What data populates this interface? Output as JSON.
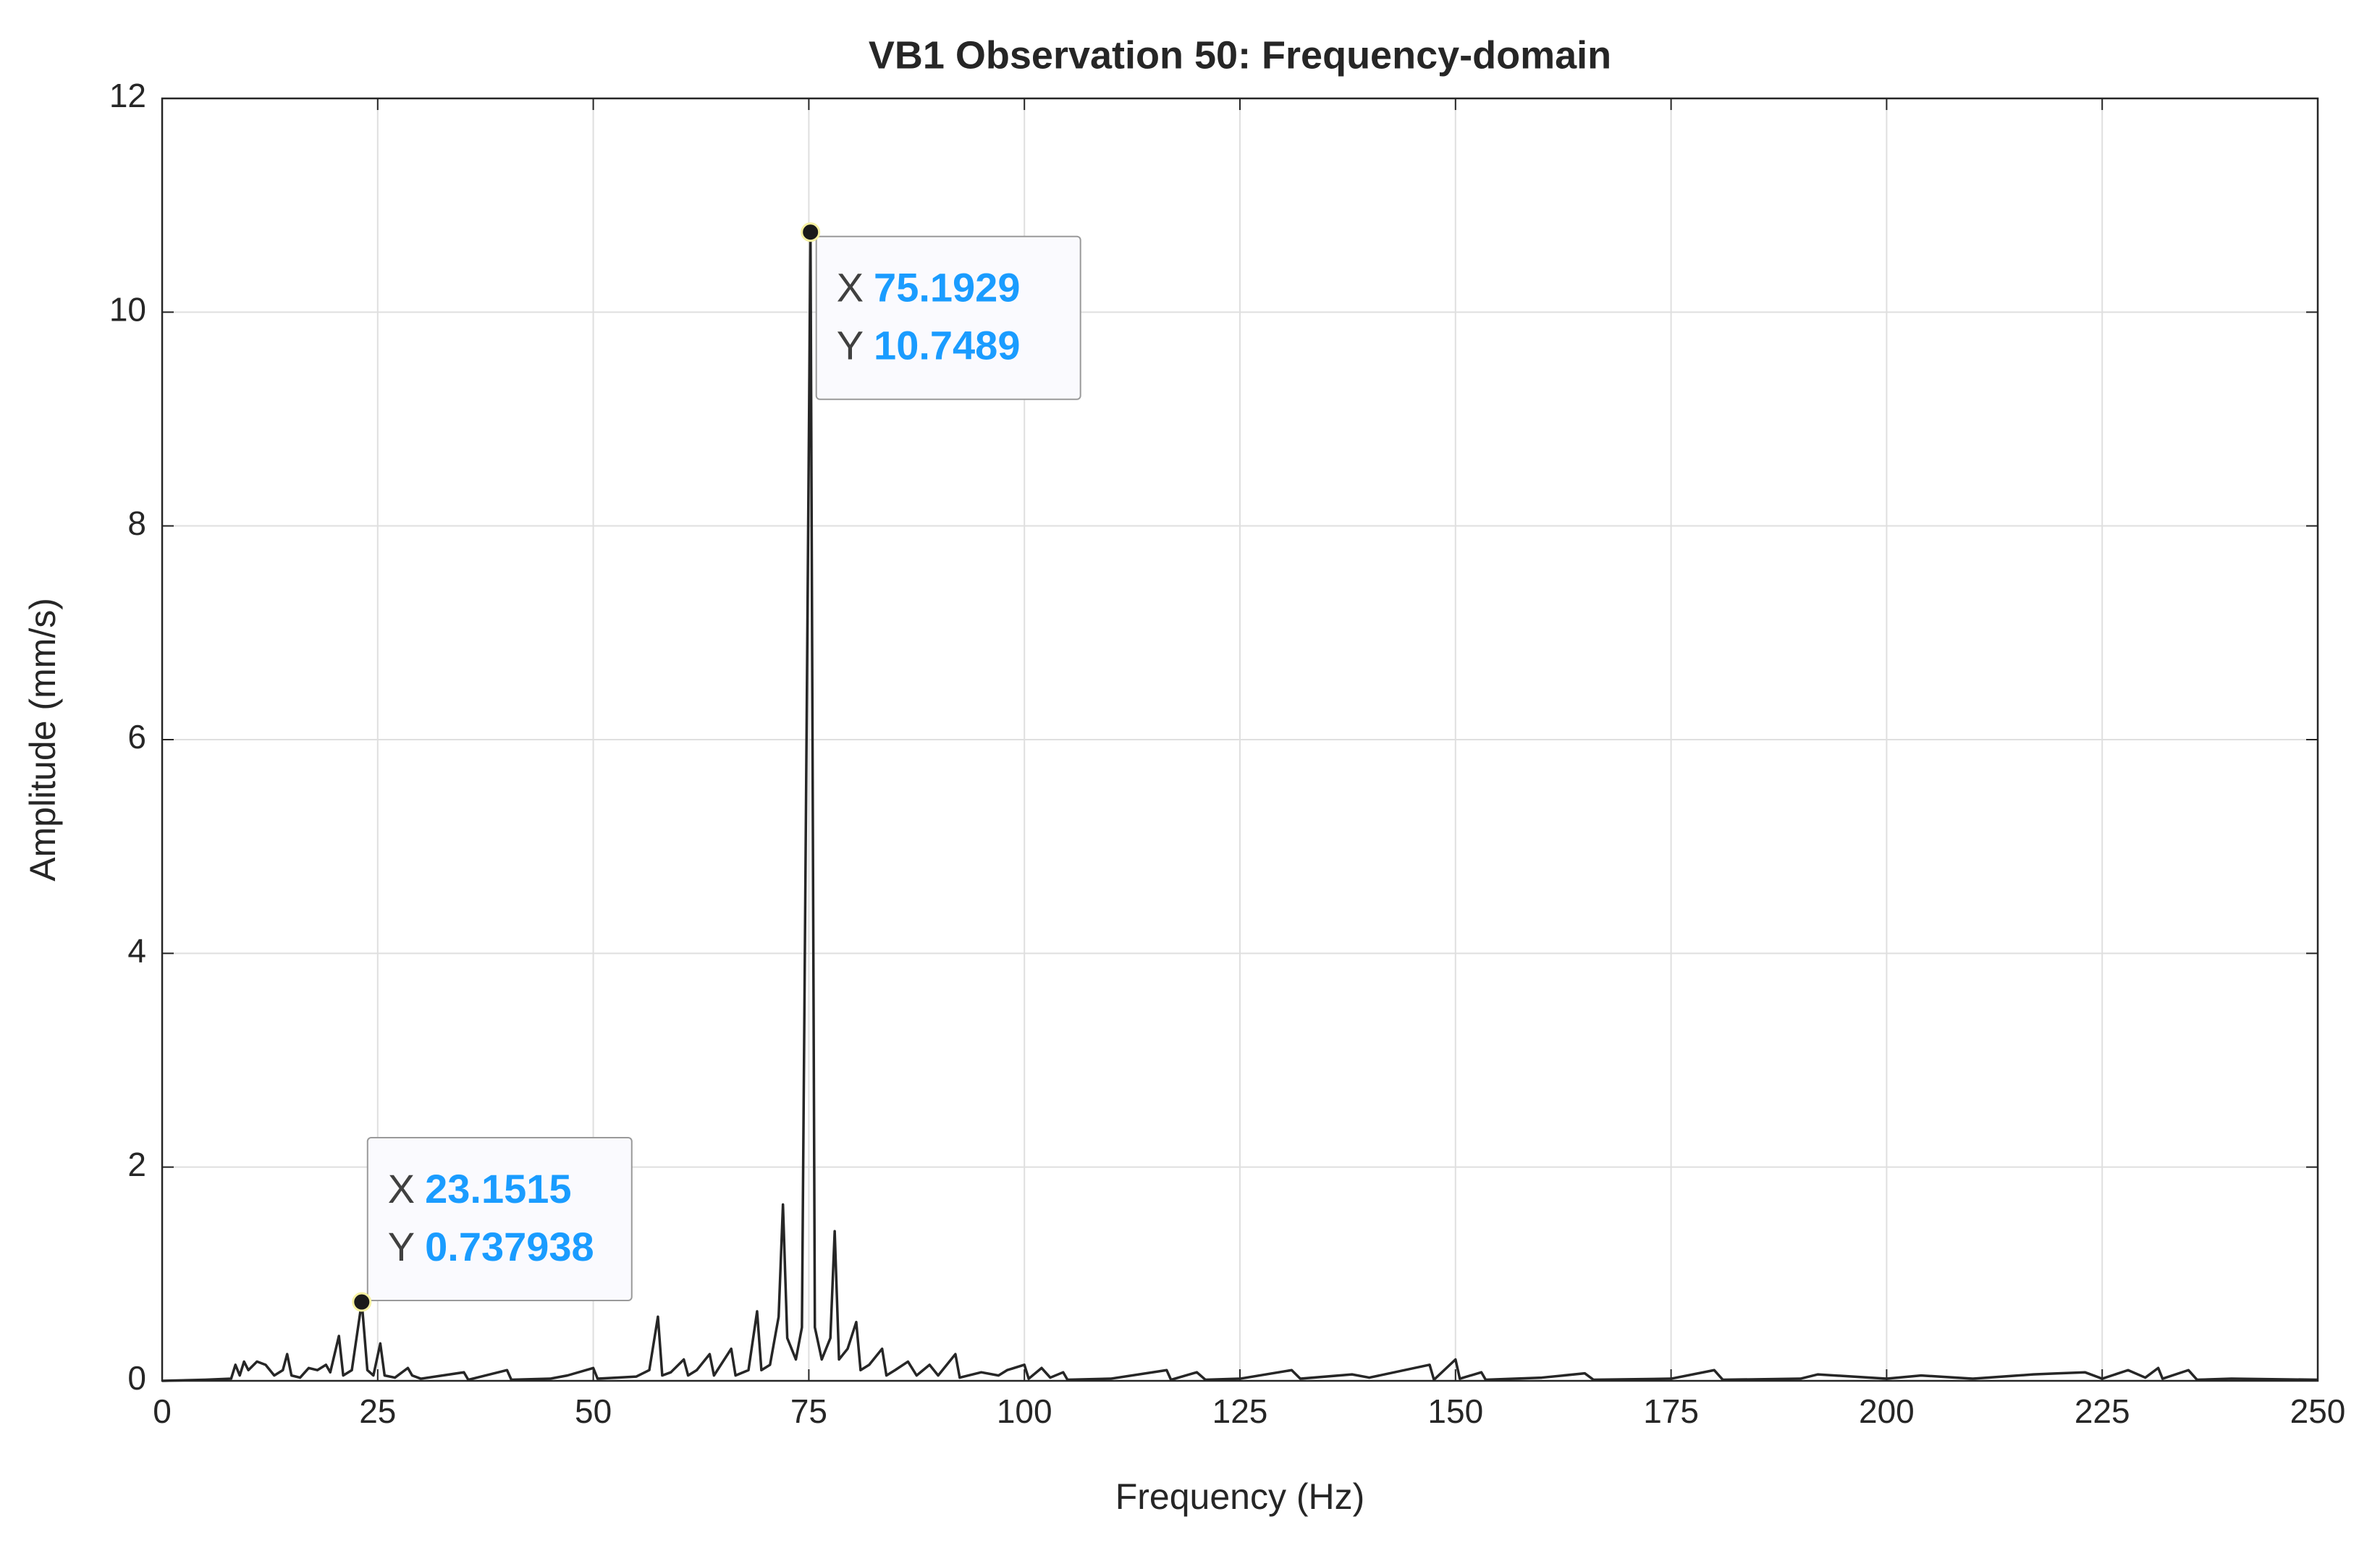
{
  "chart_data": {
    "type": "line",
    "title": "VB1 Observation 50: Frequency-domain",
    "xlabel": "Frequency (Hz)",
    "ylabel": "Amplitude (mm/s)",
    "xlim": [
      0,
      250
    ],
    "ylim": [
      0,
      12
    ],
    "xticks": [
      0,
      25,
      50,
      75,
      100,
      125,
      150,
      175,
      200,
      225,
      250
    ],
    "yticks": [
      0,
      2,
      4,
      6,
      8,
      10,
      12
    ],
    "grid": true,
    "series": [
      {
        "color": "#262626",
        "x": [
          0,
          5,
          8,
          8.5,
          9,
          9.5,
          10,
          11,
          12,
          13,
          14,
          14.5,
          15,
          16,
          17,
          18,
          19,
          19.5,
          20.5,
          21,
          22,
          23.1515,
          23.8,
          24.5,
          25.3,
          25.8,
          27,
          28.5,
          29,
          30,
          35,
          35.5,
          40,
          40.5,
          45,
          47,
          50,
          50.5,
          55,
          56.5,
          57.5,
          58,
          59,
          60.5,
          61,
          62,
          63.5,
          64,
          66,
          66.5,
          68,
          69,
          69.5,
          70.5,
          71.5,
          72,
          72.5,
          73.5,
          74.2,
          75.1929,
          75.7,
          76.5,
          77.5,
          78,
          78.5,
          79.5,
          80.5,
          81,
          82,
          83.5,
          84,
          85,
          86.5,
          87.5,
          89,
          90,
          92,
          92.5,
          95,
          97,
          98,
          100,
          100.5,
          102,
          103,
          104.5,
          105,
          110,
          116.5,
          117,
          120,
          121,
          125,
          131,
          132,
          138,
          140,
          147,
          147.5,
          150,
          150.5,
          153,
          153.5,
          160,
          165,
          166,
          175,
          180,
          181,
          190,
          192,
          200,
          204,
          210,
          217,
          220,
          223,
          225,
          228,
          230,
          231.5,
          232,
          235,
          236,
          240,
          250
        ],
        "values": [
          0,
          0.01,
          0.02,
          0.15,
          0.05,
          0.18,
          0.1,
          0.18,
          0.15,
          0.05,
          0.1,
          0.25,
          0.05,
          0.03,
          0.12,
          0.1,
          0.15,
          0.08,
          0.42,
          0.05,
          0.1,
          0.737938,
          0.1,
          0.05,
          0.35,
          0.05,
          0.03,
          0.12,
          0.05,
          0.02,
          0.08,
          0.01,
          0.1,
          0.01,
          0.02,
          0.05,
          0.12,
          0.02,
          0.04,
          0.1,
          0.6,
          0.05,
          0.08,
          0.2,
          0.05,
          0.1,
          0.25,
          0.05,
          0.3,
          0.05,
          0.1,
          0.65,
          0.1,
          0.15,
          0.6,
          1.65,
          0.4,
          0.2,
          0.5,
          10.7489,
          0.5,
          0.2,
          0.4,
          1.4,
          0.2,
          0.3,
          0.55,
          0.1,
          0.15,
          0.3,
          0.05,
          0.1,
          0.18,
          0.05,
          0.15,
          0.05,
          0.25,
          0.03,
          0.08,
          0.05,
          0.1,
          0.15,
          0.02,
          0.12,
          0.03,
          0.08,
          0.01,
          0.02,
          0.1,
          0.01,
          0.08,
          0.01,
          0.02,
          0.1,
          0.02,
          0.06,
          0.03,
          0.15,
          0.01,
          0.2,
          0.02,
          0.08,
          0.01,
          0.03,
          0.07,
          0.01,
          0.02,
          0.1,
          0.01,
          0.02,
          0.06,
          0.02,
          0.05,
          0.02,
          0.06,
          0.07,
          0.08,
          0.02,
          0.1,
          0.03,
          0.12,
          0.02,
          0.1,
          0.01,
          0.02,
          0.01
        ]
      }
    ],
    "datatips": [
      {
        "x_label": "X",
        "x": 75.1929,
        "y_label": "Y",
        "y": 10.7489
      },
      {
        "x_label": "X",
        "x": 23.1515,
        "y_label": "Y",
        "y": 0.737938
      }
    ]
  }
}
